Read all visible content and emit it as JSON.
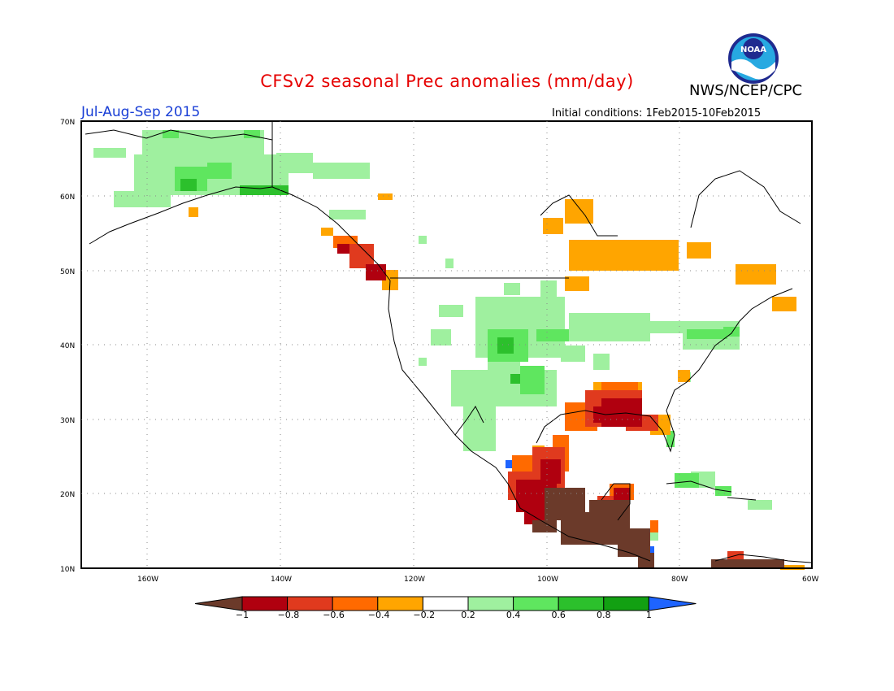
{
  "title": "CFSv2 seasonal Prec anomalies (mm/day)",
  "season": "Jul-Aug-Sep 2015",
  "agency": "NWS/NCEP/CPC",
  "logo_text": "NOAA",
  "initial_conditions": "Initial conditions: 1Feb2015-10Feb2015",
  "lat_labels": [
    "70N",
    "60N",
    "50N",
    "40N",
    "30N",
    "20N",
    "10N"
  ],
  "lon_labels": [
    "160W",
    "140W",
    "120W",
    "100W",
    "80W",
    "60W"
  ],
  "colorbar": {
    "ticks": [
      "−1",
      "−0.8",
      "−0.6",
      "−0.4",
      "−0.2",
      "0.2",
      "0.4",
      "0.6",
      "0.8",
      "1"
    ],
    "colors": [
      "#6b3a2a",
      "#b0000f",
      "#e03a1e",
      "#ff6a00",
      "#ffa500",
      "#ffffff",
      "#9ff09f",
      "#5fe65f",
      "#2cc02c",
      "#12a012",
      "#1e64ff"
    ]
  },
  "legend_colors": {
    "dry_strong": "#6b3a2a",
    "dry2": "#b0000f",
    "dry3": "#e03a1e",
    "dry4": "#ff6a00",
    "dry5": "#ffa500",
    "wet1": "#9ff09f",
    "wet2": "#5fe65f",
    "wet3": "#2cc02c",
    "wet4": "#12a012",
    "wet5": "#1e64ff"
  }
}
